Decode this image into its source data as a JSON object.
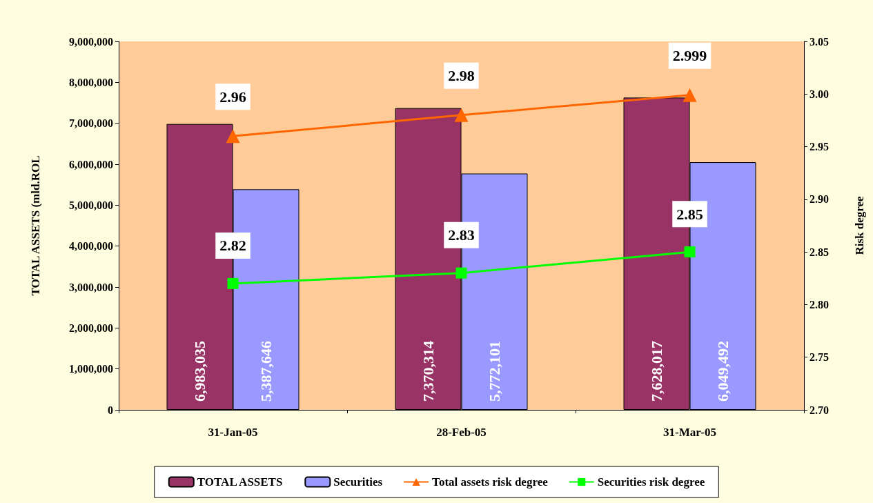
{
  "chart_data": {
    "type": "bar",
    "categories": [
      "31-Jan-05",
      "28-Feb-05",
      "31-Mar-05"
    ],
    "ylabel": "TOTAL ASSETS (mld.ROL",
    "y2label": "Risk degree",
    "ylim": [
      0,
      9000000
    ],
    "yticks": [
      {
        "value": 0,
        "label": "0"
      },
      {
        "value": 1000000,
        "label": "1,000,000"
      },
      {
        "value": 2000000,
        "label": "2,000,000"
      },
      {
        "value": 3000000,
        "label": "3,000,000"
      },
      {
        "value": 4000000,
        "label": "4,000,000"
      },
      {
        "value": 5000000,
        "label": "5,000,000"
      },
      {
        "value": 6000000,
        "label": "6,000,000"
      },
      {
        "value": 7000000,
        "label": "7,000,000"
      },
      {
        "value": 8000000,
        "label": "8,000,000"
      },
      {
        "value": 9000000,
        "label": "9,000,000"
      }
    ],
    "y2lim": [
      2.7,
      3.05
    ],
    "y2ticks": [
      {
        "value": 2.7,
        "label": "2.70"
      },
      {
        "value": 2.75,
        "label": "2.75"
      },
      {
        "value": 2.8,
        "label": "2.80"
      },
      {
        "value": 2.85,
        "label": "2.85"
      },
      {
        "value": 2.9,
        "label": "2.90"
      },
      {
        "value": 2.95,
        "label": "2.95"
      },
      {
        "value": 3.0,
        "label": "3.00"
      },
      {
        "value": 3.05,
        "label": "3.05"
      }
    ],
    "series": [
      {
        "name": "TOTAL ASSETS",
        "color": "#993366",
        "values": [
          6983035,
          7370314,
          7628017
        ],
        "value_labels": [
          "6,983,035",
          "7,370,314",
          "7,628,017"
        ]
      },
      {
        "name": "Securities",
        "color": "#9999ff",
        "values": [
          5387646,
          5772101,
          6049492
        ],
        "value_labels": [
          "5,387,646",
          "5,772,101",
          "6,049,492"
        ]
      },
      {
        "name": "Total assets risk degree",
        "type": "line",
        "axis": "y2",
        "marker": "triangle",
        "color": "#ff6600",
        "values": [
          2.96,
          2.98,
          2.999
        ],
        "value_labels": [
          "2.96",
          "2.98",
          "2.999"
        ]
      },
      {
        "name": "Securities risk degree",
        "type": "line",
        "axis": "y2",
        "marker": "square",
        "color": "#00ff00",
        "values": [
          2.82,
          2.83,
          2.85
        ],
        "value_labels": [
          "2.82",
          "2.83",
          "2.85"
        ]
      }
    ],
    "grid": false,
    "legend": "bottom"
  }
}
